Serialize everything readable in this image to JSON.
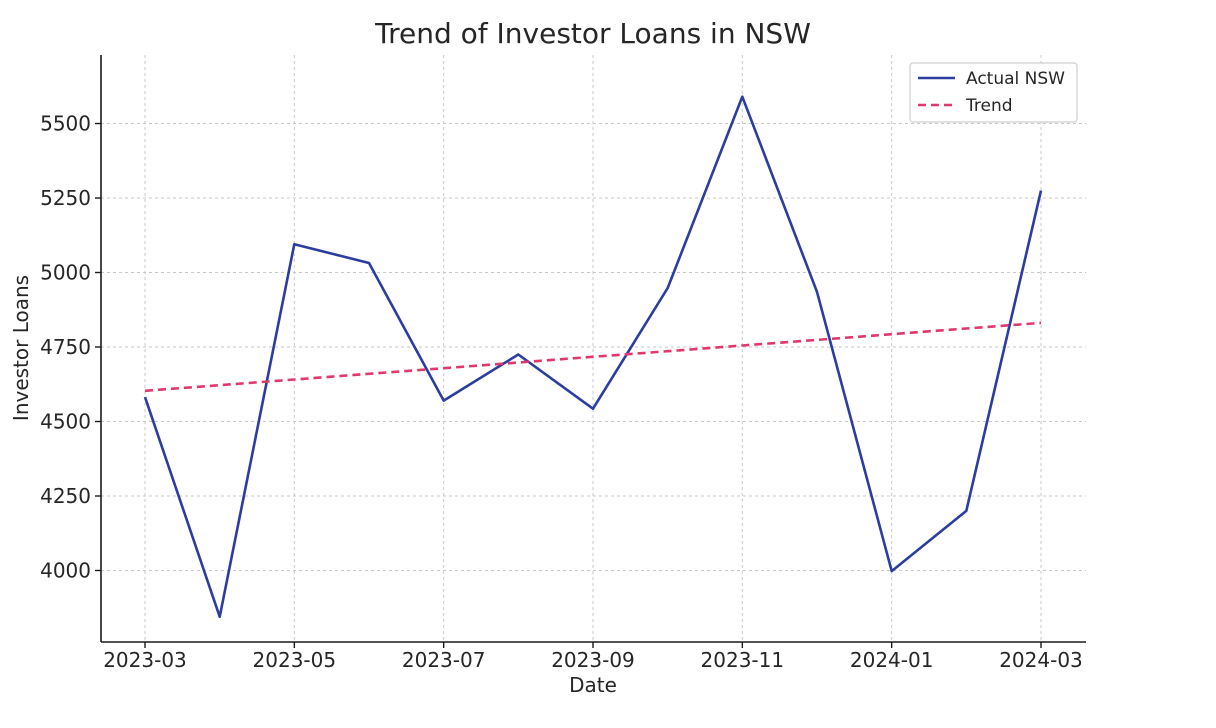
{
  "chart_data": {
    "type": "line",
    "title": "Trend of Investor Loans in NSW",
    "xlabel": "Date",
    "ylabel": "Investor Loans",
    "x": [
      "2023-03",
      "2023-04",
      "2023-05",
      "2023-06",
      "2023-07",
      "2023-08",
      "2023-09",
      "2023-10",
      "2023-11",
      "2023-12",
      "2024-01",
      "2024-02",
      "2024-03"
    ],
    "x_ticks": [
      "2023-03",
      "2023-05",
      "2023-07",
      "2023-09",
      "2023-11",
      "2024-01",
      "2024-03"
    ],
    "y_ticks": [
      4000,
      4250,
      4500,
      4750,
      5000,
      5250,
      5500
    ],
    "ylim": [
      3760,
      5730
    ],
    "grid": true,
    "legend_position": "top-right",
    "series": [
      {
        "name": "Actual NSW",
        "style": "solid",
        "color": "#2b3d9e",
        "values": [
          4582,
          3845,
          5095,
          5032,
          4570,
          4725,
          4543,
          4948,
          5590,
          4935,
          3998,
          4200,
          5275
        ]
      },
      {
        "name": "Trend",
        "style": "dashed",
        "color": "#e0386b",
        "values": [
          4603,
          4622,
          4641,
          4660,
          4679,
          4698,
          4717,
          4736,
          4755,
          4774,
          4793,
          4812,
          4831
        ]
      }
    ]
  }
}
